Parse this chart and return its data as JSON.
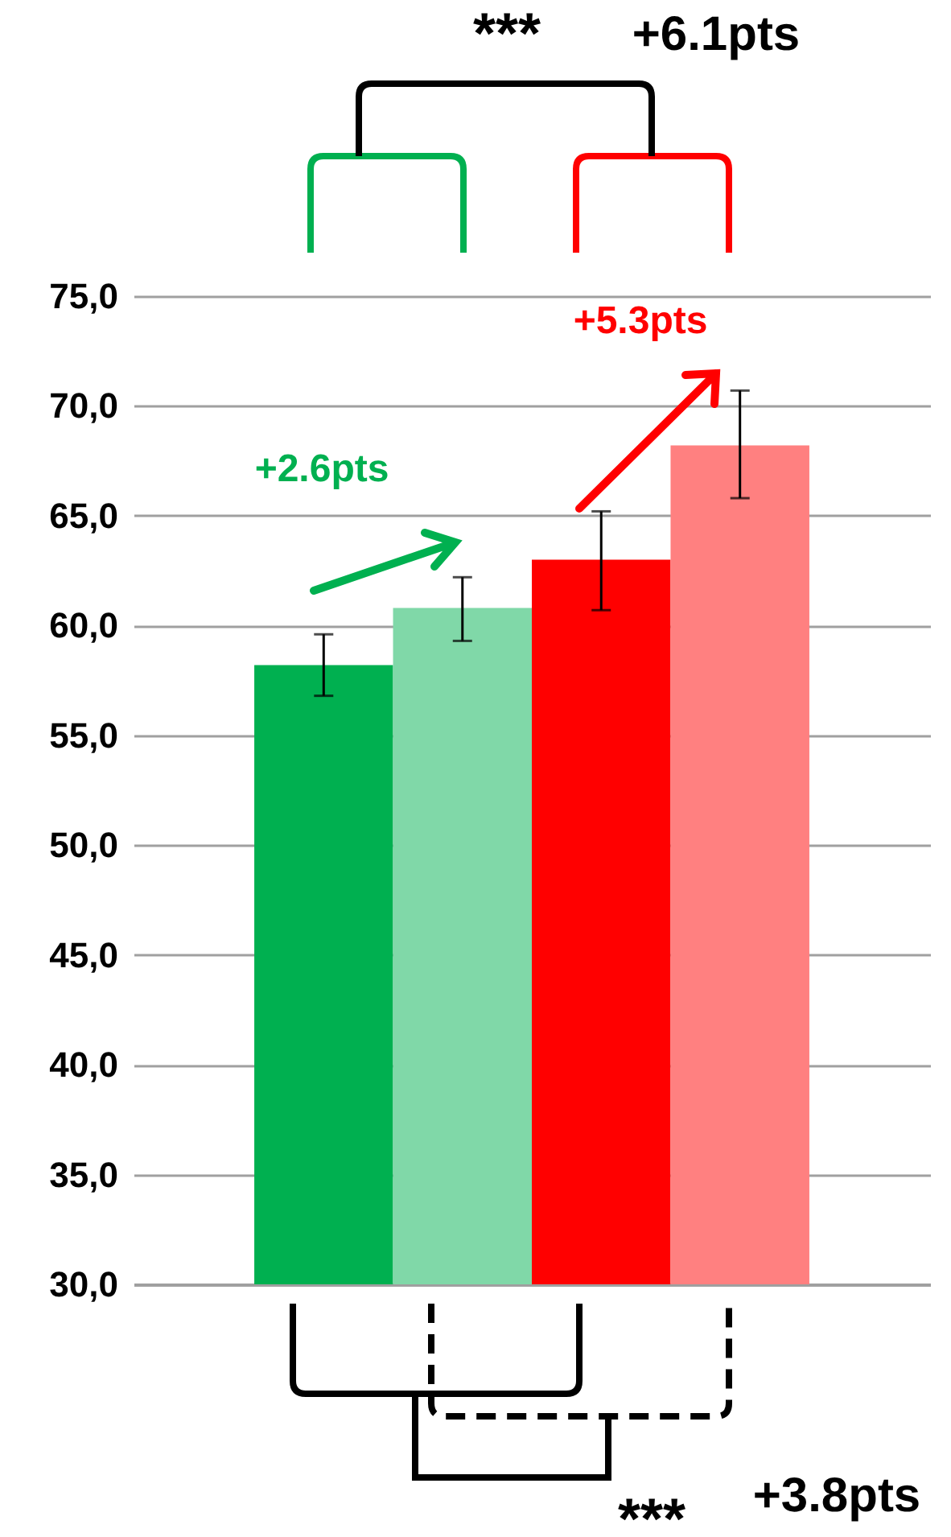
{
  "chart_data": {
    "type": "bar",
    "categories": [
      null,
      null,
      null,
      null
    ],
    "values": [
      58.2,
      60.8,
      63.0,
      68.2
    ],
    "colors": [
      "#00b050",
      "#80d8a8",
      "#ff0000",
      "#ff8080"
    ],
    "errors": [
      [
        56.8,
        59.6
      ],
      [
        59.3,
        62.2
      ],
      [
        60.7,
        65.2
      ],
      [
        65.8,
        70.7
      ]
    ],
    "ylim": [
      30,
      75
    ],
    "yticks": [
      {
        "value": 30,
        "label": "30,0"
      },
      {
        "value": 35,
        "label": "35,0"
      },
      {
        "value": 40,
        "label": "40,0"
      },
      {
        "value": 45,
        "label": "45,0"
      },
      {
        "value": 50,
        "label": "50,0"
      },
      {
        "value": 55,
        "label": "55,0"
      },
      {
        "value": 60,
        "label": "60,0"
      },
      {
        "value": 65,
        "label": "65,0"
      },
      {
        "value": 70,
        "label": "70,0"
      },
      {
        "value": 75,
        "label": "75,0"
      }
    ],
    "grid": "y",
    "tick_labels": "y",
    "annotations": [
      "***",
      "+6.1pts",
      "+2.6pts",
      "+5.3pts",
      "***",
      "+3.8pts"
    ]
  }
}
